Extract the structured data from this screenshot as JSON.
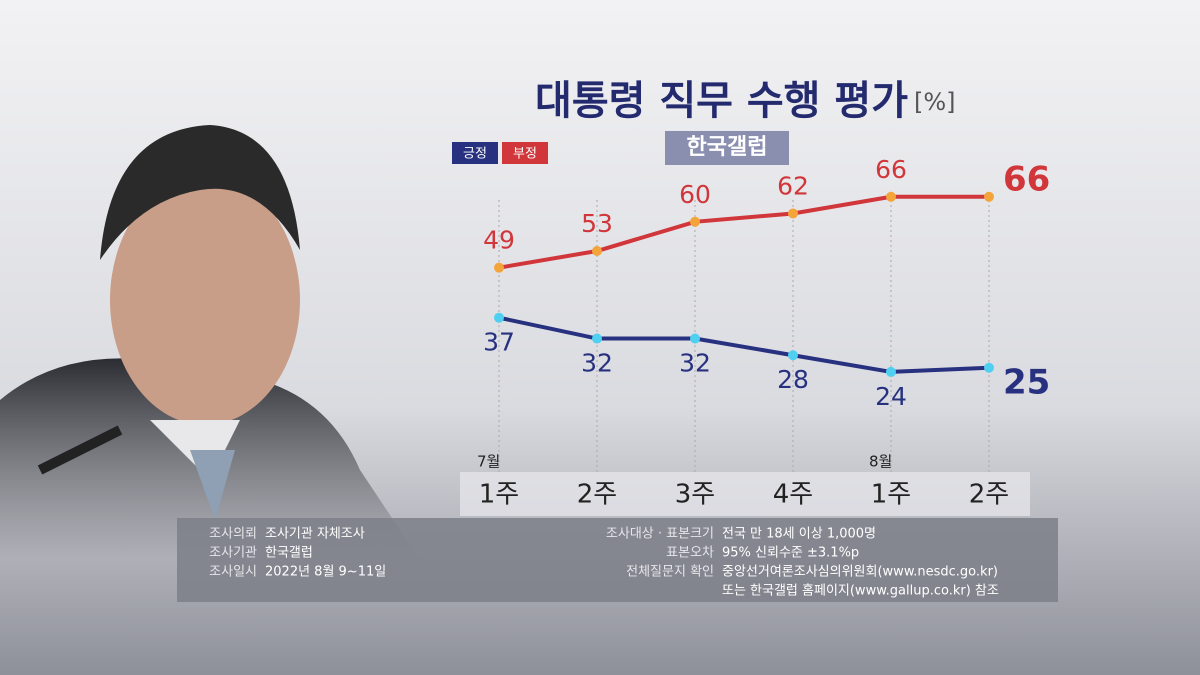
{
  "chart_data": {
    "type": "line",
    "title": "대통령 직무 수행 평가",
    "unit": "[%]",
    "source": "한국갤럽",
    "categories": [
      "1주",
      "2주",
      "3주",
      "4주",
      "1주",
      "2주"
    ],
    "months": [
      "7월",
      null,
      null,
      null,
      "8월",
      null
    ],
    "series": [
      {
        "name": "긍정",
        "color": "#27317f",
        "marker": "#4fd0f0",
        "values": [
          37,
          32,
          32,
          28,
          24,
          25
        ]
      },
      {
        "name": "부정",
        "color": "#d0363a",
        "marker": "#f3a43a",
        "values": [
          49,
          53,
          60,
          62,
          66,
          66
        ]
      }
    ],
    "notes": {
      "left": [
        {
          "label": "조사의뢰",
          "lines": [
            "조사기관 자체조사"
          ]
        },
        {
          "label": "조사기관",
          "lines": [
            "한국갤럽"
          ]
        },
        {
          "label": "조사일시",
          "lines": [
            "2022년 8월 9~11일"
          ]
        }
      ],
      "right": [
        {
          "label": "조사대상 · 표본크기",
          "lines": [
            "전국 만 18세 이상  1,000명"
          ]
        },
        {
          "label": "표본오차",
          "lines": [
            "95% 신뢰수준 ±3.1%p"
          ]
        },
        {
          "label": "전체질문지 확인",
          "lines": [
            "중앙선거여론조사심의위원회(www.nesdc.go.kr)",
            "또는 한국갤럽 홈페이지(www.gallup.co.kr) 참조"
          ]
        }
      ]
    }
  }
}
